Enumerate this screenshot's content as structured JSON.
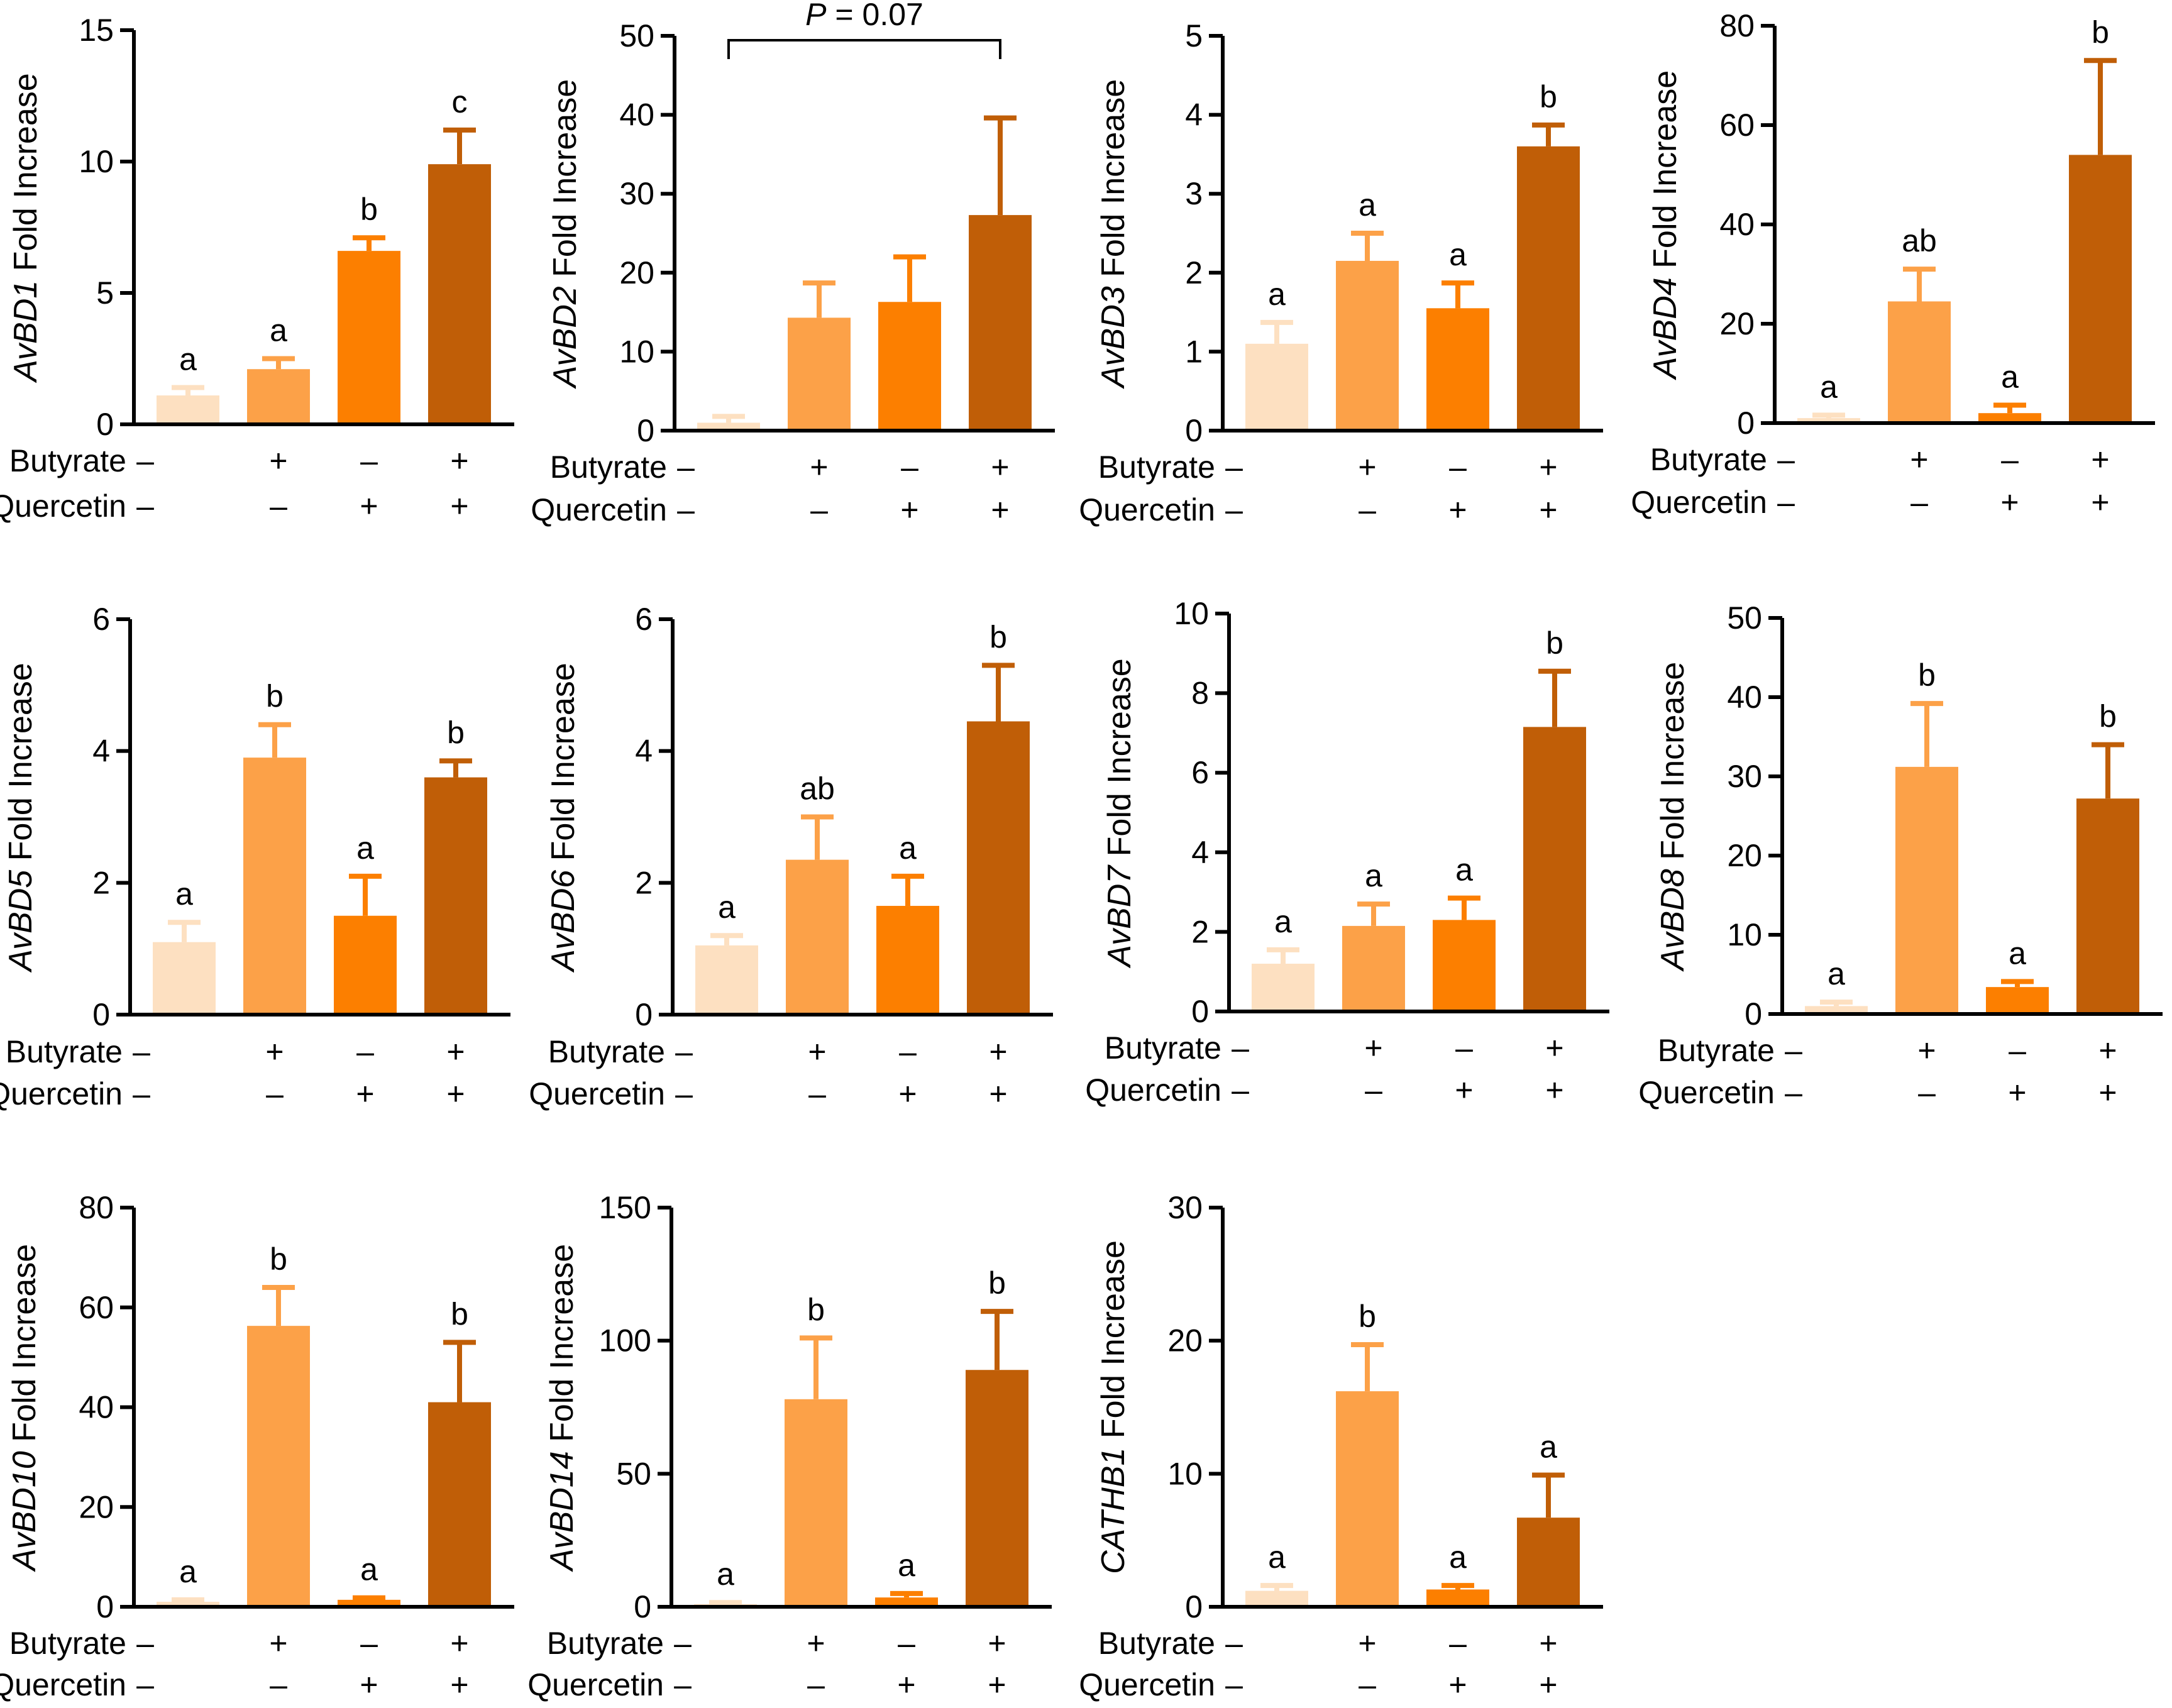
{
  "figure": {
    "row_labels": {
      "butyrate": "Butyrate",
      "quercetin": "Quercetin"
    },
    "treatment_signs": {
      "butyrate": [
        "–",
        "+",
        "–",
        "+"
      ],
      "quercetin": [
        "–",
        "–",
        "+",
        "+"
      ]
    },
    "colors": [
      "#fde0c1",
      "#fca148",
      "#fc7f00",
      "#c05e07"
    ],
    "ylabel_suffix": "Fold Increase"
  },
  "chart_data": [
    {
      "type": "bar",
      "gene": "AvBD1",
      "ylabel": "AvBD1 Fold Increase",
      "ylim": [
        0,
        15
      ],
      "ticks": [
        0,
        5,
        10,
        15
      ],
      "values": [
        1.1,
        2.1,
        6.6,
        9.9
      ],
      "errors": [
        0.3,
        0.4,
        0.5,
        1.3
      ],
      "letters": [
        "a",
        "a",
        "b",
        "c"
      ]
    },
    {
      "type": "bar",
      "gene": "AvBD2",
      "ylabel": "AvBD2 Fold Increase",
      "ylim": [
        0,
        50
      ],
      "ticks": [
        0,
        10,
        20,
        30,
        40,
        50
      ],
      "values": [
        1.0,
        14.3,
        16.3,
        27.3
      ],
      "errors": [
        0.8,
        4.4,
        5.7,
        12.3
      ],
      "letters": [
        "",
        "",
        "",
        ""
      ],
      "bracket": {
        "from": 0,
        "to": 3,
        "label_italic": "P",
        "label_rest": " = 0.07"
      }
    },
    {
      "type": "bar",
      "gene": "AvBD3",
      "ylabel": "AvBD3 Fold Increase",
      "ylim": [
        0,
        5
      ],
      "ticks": [
        0,
        1,
        2,
        3,
        4,
        5
      ],
      "values": [
        1.1,
        2.15,
        1.55,
        3.6
      ],
      "errors": [
        0.27,
        0.35,
        0.32,
        0.27
      ],
      "letters": [
        "a",
        "a",
        "a",
        "b"
      ]
    },
    {
      "type": "bar",
      "gene": "AvBD4",
      "ylabel": "AvBD4 Fold Increase",
      "ylim": [
        0,
        80
      ],
      "ticks": [
        0,
        20,
        40,
        60,
        80
      ],
      "values": [
        1.0,
        24.5,
        2.0,
        54.0
      ],
      "errors": [
        0.6,
        6.5,
        1.6,
        19.0
      ],
      "letters": [
        "a",
        "ab",
        "a",
        "b"
      ]
    },
    {
      "type": "bar",
      "gene": "AvBD5",
      "ylabel": "AvBD5 Fold Increase",
      "ylim": [
        0,
        6
      ],
      "ticks": [
        0,
        2,
        4,
        6
      ],
      "values": [
        1.1,
        3.9,
        1.5,
        3.6
      ],
      "errors": [
        0.3,
        0.5,
        0.6,
        0.25
      ],
      "letters": [
        "a",
        "b",
        "a",
        "b"
      ]
    },
    {
      "type": "bar",
      "gene": "AvBD6",
      "ylabel": "AvBD6 Fold Increase",
      "ylim": [
        0,
        6
      ],
      "ticks": [
        0,
        2,
        4,
        6
      ],
      "values": [
        1.05,
        2.35,
        1.65,
        4.45
      ],
      "errors": [
        0.15,
        0.65,
        0.45,
        0.85
      ],
      "letters": [
        "a",
        "ab",
        "a",
        "b"
      ]
    },
    {
      "type": "bar",
      "gene": "AvBD7",
      "ylabel": "AvBD7 Fold Increase",
      "ylim": [
        0,
        10
      ],
      "ticks": [
        0,
        2,
        4,
        6,
        8,
        10
      ],
      "values": [
        1.2,
        2.15,
        2.3,
        7.15
      ],
      "errors": [
        0.35,
        0.55,
        0.55,
        1.4
      ],
      "letters": [
        "a",
        "a",
        "a",
        "b"
      ]
    },
    {
      "type": "bar",
      "gene": "AvBD8",
      "ylabel": "AvBD8 Fold Increase",
      "ylim": [
        0,
        50
      ],
      "ticks": [
        0,
        10,
        20,
        30,
        40,
        50
      ],
      "values": [
        1.0,
        31.2,
        3.4,
        27.2
      ],
      "errors": [
        0.5,
        8.0,
        0.7,
        6.8
      ],
      "letters": [
        "a",
        "b",
        "a",
        "b"
      ]
    },
    {
      "type": "bar",
      "gene": "AvBD10",
      "ylabel": "AvBD10 Fold Increase",
      "ylim": [
        0,
        80
      ],
      "ticks": [
        0,
        20,
        40,
        60,
        80
      ],
      "values": [
        1.0,
        56.3,
        1.4,
        41.0
      ],
      "errors": [
        0.4,
        7.7,
        0.4,
        12.0
      ],
      "letters": [
        "a",
        "b",
        "a",
        "b"
      ]
    },
    {
      "type": "bar",
      "gene": "AvBD14",
      "ylabel": "AvBD14 Fold Increase",
      "ylim": [
        0,
        150
      ],
      "ticks": [
        0,
        50,
        100,
        150
      ],
      "values": [
        1.0,
        78.0,
        3.5,
        89.0
      ],
      "errors": [
        0.6,
        23.0,
        1.5,
        22.0
      ],
      "letters": [
        "a",
        "b",
        "a",
        "b"
      ]
    },
    {
      "type": "bar",
      "gene": "CATHB1",
      "ylabel": "CATHB1 Fold Increase",
      "ylim": [
        0,
        30
      ],
      "ticks": [
        0,
        10,
        20,
        30
      ],
      "values": [
        1.2,
        16.2,
        1.3,
        6.7
      ],
      "errors": [
        0.4,
        3.5,
        0.3,
        3.2
      ],
      "letters": [
        "a",
        "b",
        "a",
        "a"
      ]
    }
  ]
}
